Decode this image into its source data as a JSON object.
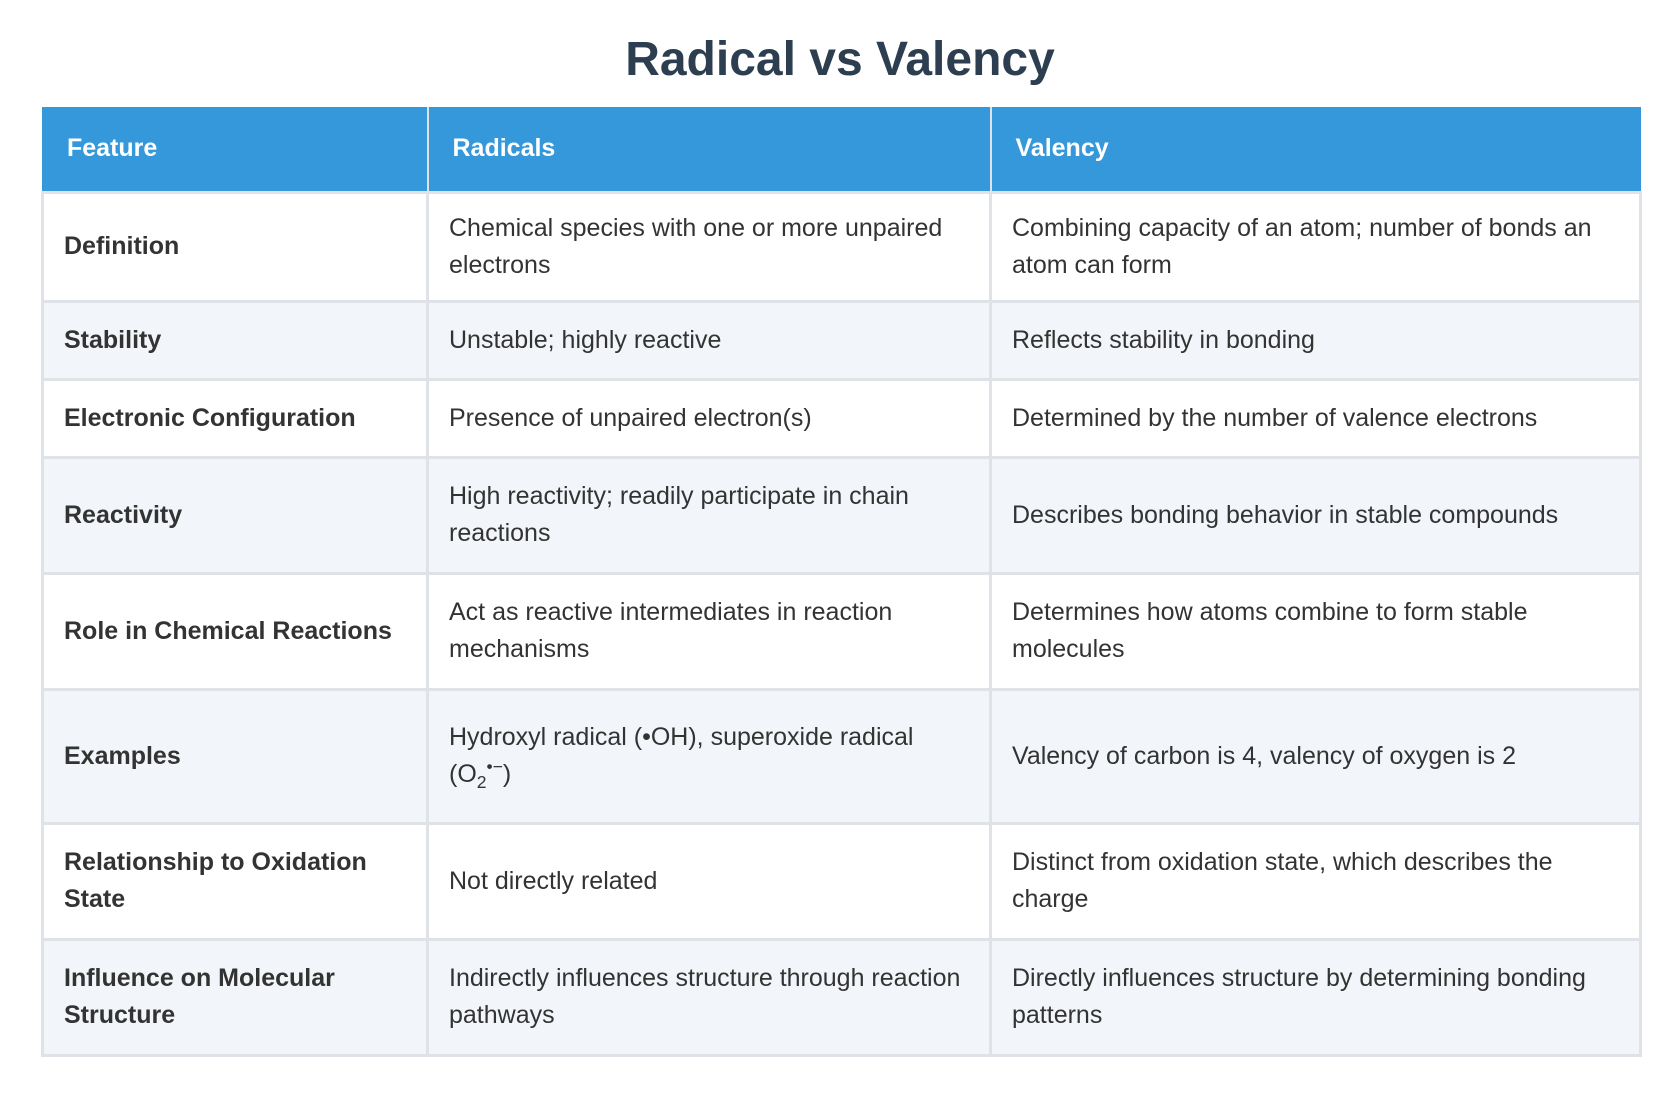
{
  "title": "Radical vs Valency",
  "table": {
    "headers": [
      "Feature",
      "Radicals",
      "Valency"
    ],
    "rows": [
      {
        "feature": "Definition",
        "radicals": "Chemical species with one or more unpaired electrons",
        "valency": "Combining capacity of an atom; number of bonds an atom can form"
      },
      {
        "feature": "Stability",
        "radicals": "Unstable; highly reactive",
        "valency": "Reflects stability in bonding"
      },
      {
        "feature": "Electronic Configuration",
        "radicals": "Presence of unpaired electron(s)",
        "valency": "Determined by the number of valence electrons"
      },
      {
        "feature": "Reactivity",
        "radicals": "High reactivity; readily participate in chain reactions",
        "valency": "Describes bonding behavior in stable compounds"
      },
      {
        "feature": "Role in Chemical Reactions",
        "radicals": "Act as reactive intermediates in reaction mechanisms",
        "valency": "Determines how atoms combine to form stable molecules"
      },
      {
        "feature": "Examples",
        "radicals_prefix": "Hydroxyl radical (•OH), superoxide radical (O",
        "radicals_sub": "2",
        "radicals_sup": "•−",
        "radicals_suffix": ")",
        "valency": "Valency of carbon is 4, valency of oxygen is 2"
      },
      {
        "feature": "Relationship to Oxidation State",
        "radicals": "Not directly related",
        "valency": "Distinct from oxidation state, which describes the charge"
      },
      {
        "feature": "Influence on Molecular Structure",
        "radicals": "Indirectly influences structure through reaction pathways",
        "valency": "Directly influences structure by determining bonding patterns"
      }
    ]
  },
  "colors": {
    "header_bg": "#3498db",
    "title": "#2c3e50",
    "stripe": "#f2f5f9",
    "border": "#dfe3e8"
  }
}
